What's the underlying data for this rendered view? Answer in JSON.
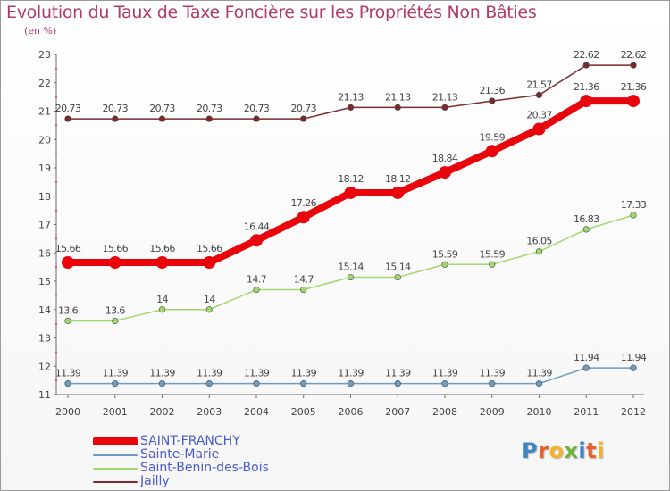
{
  "page": {
    "title": "Evolution du Taux de Taxe Foncière sur les Propriétés Non Bâties",
    "subtitle": "(en %)"
  },
  "logo": {
    "letters": [
      {
        "ch": "P",
        "color": "#3b86c9"
      },
      {
        "ch": "r",
        "color": "#e8602c"
      },
      {
        "ch": "o",
        "color": "#f2b230"
      },
      {
        "ch": "x",
        "color": "#6fb33f"
      },
      {
        "ch": "i",
        "color": "#3b86c9"
      },
      {
        "ch": "t",
        "color": "#e8602c"
      },
      {
        "ch": "i",
        "color": "#f2b230"
      }
    ]
  },
  "chart_data": {
    "type": "line",
    "title": "Evolution du Taux de Taxe Foncière sur les Propriétés Non Bâties",
    "ylabel": "(en %)",
    "xlabel": "",
    "x": [
      "2000",
      "2001",
      "2002",
      "2003",
      "2004",
      "2005",
      "2006",
      "2007",
      "2008",
      "2009",
      "2010",
      "2011",
      "2012"
    ],
    "ylim": [
      11,
      23
    ],
    "yticks": [
      "11",
      "12",
      "13",
      "14",
      "15",
      "16",
      "17",
      "18",
      "19",
      "20",
      "21",
      "22",
      "23"
    ],
    "grid": false,
    "legend_position": "bottom-left",
    "series": [
      {
        "name": "SAINT-FRANCHY",
        "color": "#e8050b",
        "emphasis": true,
        "values": [
          15.66,
          15.66,
          15.66,
          15.66,
          16.44,
          17.26,
          18.12,
          18.12,
          18.84,
          19.59,
          20.37,
          21.36,
          21.36
        ],
        "labels": [
          "15.66",
          "15.66",
          "15.66",
          "15.66",
          "16.44",
          "17.26",
          "18.12",
          "18.12",
          "18.84",
          "19.59",
          "20.37",
          "21.36",
          "21.36"
        ]
      },
      {
        "name": "Sainte-Marie",
        "color": "#6b9cc4",
        "emphasis": false,
        "values": [
          11.39,
          11.39,
          11.39,
          11.39,
          11.39,
          11.39,
          11.39,
          11.39,
          11.39,
          11.39,
          11.39,
          11.94,
          11.94
        ],
        "labels": [
          "11.39",
          "11.39",
          "11.39",
          "11.39",
          "11.39",
          "11.39",
          "11.39",
          "11.39",
          "11.39",
          "11.39",
          "11.39",
          "11.94",
          "11.94"
        ]
      },
      {
        "name": "Saint-Benin-des-Bois",
        "color": "#9fd86c",
        "emphasis": false,
        "values": [
          13.6,
          13.6,
          14,
          14,
          14.7,
          14.7,
          15.14,
          15.14,
          15.59,
          15.59,
          16.05,
          16.83,
          17.33
        ],
        "labels": [
          "13.6",
          "13.6",
          "14",
          "14",
          "14.7",
          "14.7",
          "15.14",
          "15.14",
          "15.59",
          "15.59",
          "16.05",
          "16.83",
          "17.33"
        ]
      },
      {
        "name": "Jailly",
        "color": "#7a2a2a",
        "emphasis": false,
        "values": [
          20.73,
          20.73,
          20.73,
          20.73,
          20.73,
          20.73,
          21.13,
          21.13,
          21.13,
          21.36,
          21.57,
          22.62,
          22.62
        ],
        "labels": [
          "20.73",
          "20.73",
          "20.73",
          "20.73",
          "20.73",
          "20.73",
          "21.13",
          "21.13",
          "21.13",
          "21.36",
          "21.57",
          "22.62",
          "22.62"
        ]
      }
    ]
  }
}
